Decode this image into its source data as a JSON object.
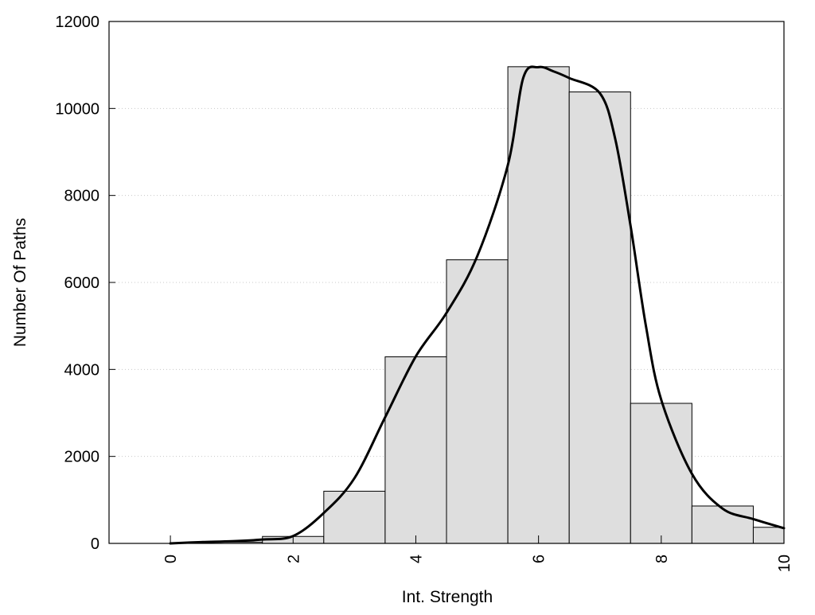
{
  "chart_data": {
    "type": "bar",
    "title": "",
    "xlabel": "Int. Strength",
    "ylabel": "Number Of Paths",
    "xlim": [
      -1,
      10
    ],
    "ylim": [
      0,
      12000
    ],
    "x_ticks": [
      0,
      2,
      4,
      6,
      8,
      10
    ],
    "y_ticks": [
      0,
      2000,
      4000,
      6000,
      8000,
      10000,
      12000
    ],
    "x_tick_labels_rotated": true,
    "grid": "horizontal dotted",
    "legend": "none",
    "bins": [
      {
        "x0": -0.5,
        "x1": 0.5,
        "value": 0
      },
      {
        "x0": 0.5,
        "x1": 1.5,
        "value": 30
      },
      {
        "x0": 1.5,
        "x1": 2.5,
        "value": 160
      },
      {
        "x0": 2.5,
        "x1": 3.5,
        "value": 1200
      },
      {
        "x0": 3.5,
        "x1": 4.5,
        "value": 4290
      },
      {
        "x0": 4.5,
        "x1": 5.5,
        "value": 6520
      },
      {
        "x0": 5.5,
        "x1": 6.5,
        "value": 10960
      },
      {
        "x0": 6.5,
        "x1": 7.5,
        "value": 10380
      },
      {
        "x0": 7.5,
        "x1": 8.5,
        "value": 3220
      },
      {
        "x0": 8.5,
        "x1": 9.5,
        "value": 860
      },
      {
        "x0": 9.5,
        "x1": 10,
        "value": 370
      }
    ],
    "curve": {
      "x": [
        0,
        0.5,
        1,
        1.5,
        2,
        2.5,
        3,
        3.5,
        4,
        4.5,
        5,
        5.5,
        5.75,
        6,
        6.25,
        6.5,
        7,
        7.25,
        7.5,
        7.75,
        8,
        8.5,
        9,
        9.5,
        10
      ],
      "y": [
        0,
        30,
        50,
        90,
        170,
        700,
        1500,
        2900,
        4300,
        5300,
        6600,
        8700,
        10700,
        10950,
        10850,
        10700,
        10350,
        9300,
        7300,
        5000,
        3300,
        1600,
        800,
        560,
        350
      ]
    },
    "colors": {
      "bar_fill": "#dedede",
      "bar_stroke": "#000000",
      "curve": "#000000",
      "grid": "#c8c8c8",
      "frame": "#000000"
    }
  }
}
